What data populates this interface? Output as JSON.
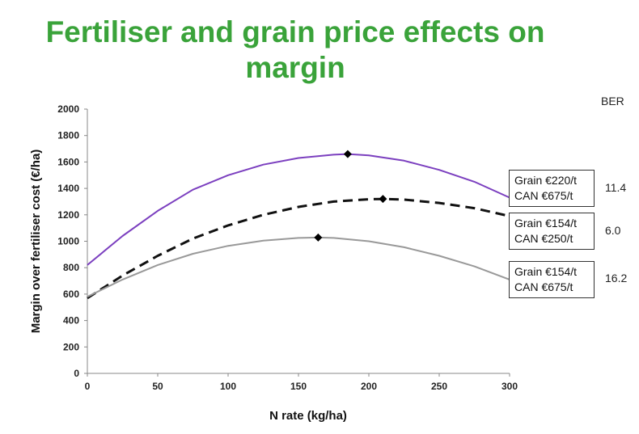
{
  "title": "Fertiliser and grain price effects on margin",
  "ber_header": "BER",
  "chart_data": {
    "type": "line",
    "title": "Fertiliser and grain price effects on margin",
    "xlabel": "N rate (kg/ha)",
    "ylabel": "Margin over fertiliser cost (€/ha)",
    "xlim": [
      0,
      300
    ],
    "ylim": [
      0,
      2000
    ],
    "x_ticks": [
      0,
      50,
      100,
      150,
      200,
      250,
      300
    ],
    "y_ticks": [
      0,
      200,
      400,
      600,
      800,
      1000,
      1200,
      1400,
      1600,
      1800,
      2000
    ],
    "series": [
      {
        "name": "Grain €220/t CAN €675/t",
        "grain": "Grain €220/t",
        "can": "CAN  €675/t",
        "ber": "11.4",
        "color": "#7b3fbf",
        "style": "solid",
        "x": [
          0,
          25,
          50,
          75,
          100,
          125,
          150,
          175,
          185,
          200,
          225,
          250,
          275,
          300
        ],
        "y": [
          820,
          1040,
          1230,
          1390,
          1500,
          1580,
          1630,
          1655,
          1660,
          1650,
          1610,
          1540,
          1450,
          1330
        ],
        "optimum": {
          "x": 185,
          "y": 1660
        }
      },
      {
        "name": "Grain €154/t CAN €250/t",
        "grain": "Grain €154/t",
        "can": "CAN  €250/t",
        "ber": "6.0",
        "color": "#111111",
        "style": "dashed",
        "x": [
          0,
          25,
          50,
          75,
          100,
          125,
          150,
          175,
          200,
          210,
          225,
          250,
          275,
          300
        ],
        "y": [
          570,
          740,
          890,
          1020,
          1120,
          1200,
          1260,
          1300,
          1318,
          1320,
          1315,
          1290,
          1250,
          1190
        ],
        "optimum": {
          "x": 210,
          "y": 1320
        }
      },
      {
        "name": "Grain €154/t CAN €675/t",
        "grain": "Grain €154/t",
        "can": "CAN  €675/t",
        "ber": "16.2",
        "color": "#999999",
        "style": "solid",
        "x": [
          0,
          25,
          50,
          75,
          100,
          125,
          150,
          164,
          175,
          200,
          225,
          250,
          275,
          300
        ],
        "y": [
          580,
          710,
          820,
          905,
          965,
          1005,
          1025,
          1028,
          1025,
          1000,
          955,
          890,
          810,
          710
        ],
        "optimum": {
          "x": 164,
          "y": 1028
        }
      }
    ]
  }
}
